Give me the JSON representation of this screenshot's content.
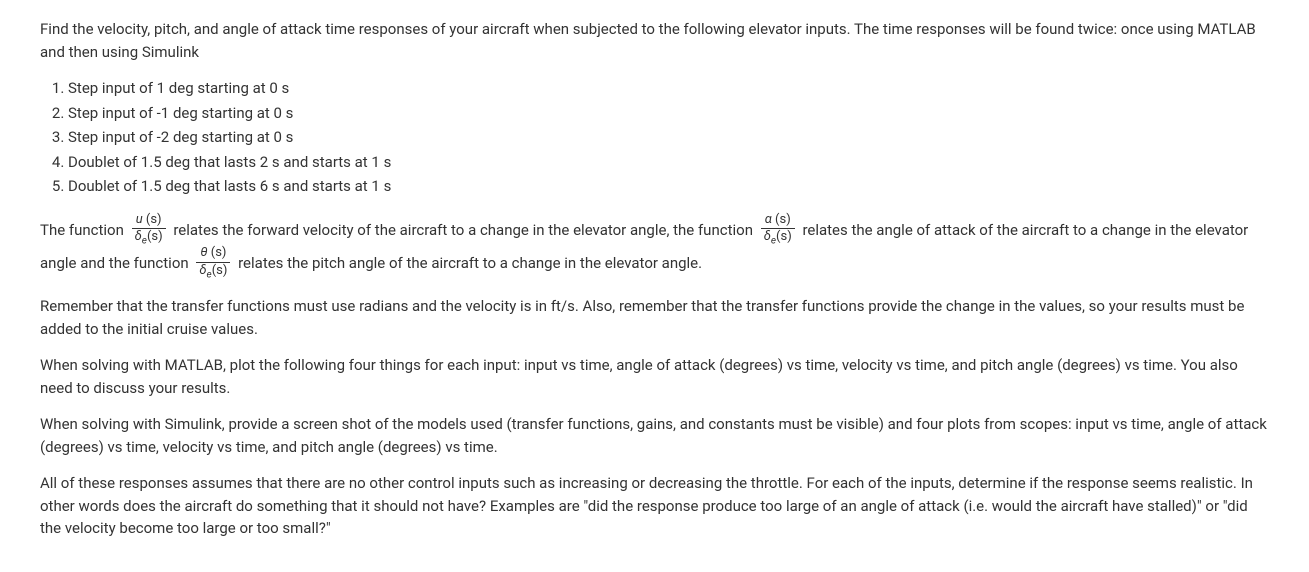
{
  "intro": "Find the velocity, pitch, and angle of attack time responses of your aircraft when subjected to the following elevator inputs. The time responses will be found twice: once using MATLAB and then using Simulink",
  "list": {
    "items": [
      "Step input of 1 deg starting at 0 s",
      "Step input of -1 deg starting at 0 s",
      "Step input of -2 deg starting at 0 s",
      "Doublet of 1.5 deg that lasts 2 s and starts at 1 s",
      "Doublet of 1.5 deg that lasts 6 s and starts at 1 s"
    ]
  },
  "tf_para": {
    "part1": "The function ",
    "frac1_num_var": "u",
    "frac1_num_suffix": " (s)",
    "frac1_den_var": "δ",
    "frac1_den_sub": "e",
    "frac1_den_suffix": "(s)",
    "part2": " relates the forward velocity of the aircraft to a change in the elevator angle, the function ",
    "frac2_num_var": "α",
    "frac2_num_suffix": " (s)",
    "frac2_den_var": "δ",
    "frac2_den_sub": "e",
    "frac2_den_suffix": "(s)",
    "part3": " relates the angle of attack of the aircraft to a change in the elevator angle and the function ",
    "frac3_num_var": "θ",
    "frac3_num_suffix": " (s)",
    "frac3_den_var": "δ",
    "frac3_den_sub": "e",
    "frac3_den_suffix": "(s)",
    "part4": " relates the pitch angle of the aircraft to a change in the elevator angle."
  },
  "para_remember": "Remember that the transfer functions must use radians and the velocity is in ft/s. Also, remember that the transfer functions provide the change in the values, so your results must be added to the initial cruise values.",
  "para_matlab": "When solving with MATLAB, plot the following four things for each input: input vs time, angle of attack (degrees) vs time, velocity vs time, and pitch angle (degrees) vs time. You also need to discuss your results.",
  "para_simulink": "When solving with Simulink, provide a screen shot of the models used (transfer functions, gains, and constants must be visible) and four plots from scopes: input vs time, angle of attack (degrees) vs time, velocity vs time, and pitch angle (degrees) vs time.",
  "para_realistic": "All of these responses assumes that there are no other control inputs such as increasing or decreasing the throttle. For each of the inputs, determine if the response seems realistic. In other words does the aircraft do something that it should not have? Examples are \"did the response produce too large of an angle of attack (i.e. would the aircraft have stalled)\" or \"did the velocity become too large or too small?\""
}
